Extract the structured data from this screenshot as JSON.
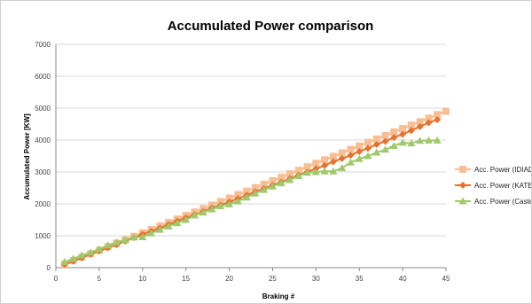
{
  "chart_data": {
    "type": "line",
    "title": "Accumulated Power comparison",
    "xlabel": "Braking #",
    "ylabel": "Accumulated Power [KW]",
    "xlim": [
      0,
      45
    ],
    "ylim": [
      0,
      7000
    ],
    "x_ticks": [
      0,
      5,
      10,
      15,
      20,
      25,
      30,
      35,
      40,
      45
    ],
    "x_tick_labels": [
      "0",
      "5",
      "10",
      "15",
      "20",
      "25",
      "30",
      "35",
      "40",
      "45"
    ],
    "y_ticks": [
      0,
      1000,
      2000,
      3000,
      4000,
      5000,
      6000,
      7000
    ],
    "y_tick_labels": [
      "0",
      "1000",
      "2000",
      "3000",
      "4000",
      "5000",
      "6000",
      "7000"
    ],
    "grid": true,
    "legend_position": "right",
    "series": [
      {
        "name": "Acc. Power (IDIADA)",
        "color": "#f9be93",
        "marker": "square",
        "x": [
          1,
          2,
          3,
          4,
          5,
          6,
          7,
          8,
          9,
          10,
          11,
          12,
          13,
          14,
          15,
          16,
          17,
          18,
          19,
          20,
          21,
          22,
          23,
          24,
          25,
          26,
          27,
          28,
          29,
          30,
          31,
          32,
          33,
          34,
          35,
          36,
          37,
          38,
          39,
          40,
          41,
          42,
          43,
          44,
          45
        ],
        "values": [
          109,
          218,
          327,
          436,
          545,
          654,
          763,
          872,
          981,
          1090,
          1199,
          1308,
          1417,
          1526,
          1635,
          1744,
          1853,
          1962,
          2071,
          2180,
          2289,
          2398,
          2507,
          2616,
          2725,
          2834,
          2943,
          3052,
          3161,
          3270,
          3379,
          3488,
          3597,
          3706,
          3815,
          3924,
          4033,
          4142,
          4251,
          4360,
          4469,
          4578,
          4687,
          4796,
          4900
        ]
      },
      {
        "name": "Acc. Power (KATECH)",
        "color": "#e3732f",
        "marker": "diamond",
        "x": [
          1,
          2,
          3,
          4,
          5,
          6,
          7,
          8,
          9,
          10,
          11,
          12,
          13,
          14,
          15,
          16,
          17,
          18,
          19,
          20,
          21,
          22,
          23,
          24,
          25,
          26,
          27,
          28,
          29,
          30,
          31,
          32,
          33,
          34,
          35,
          36,
          37,
          38,
          39,
          40,
          41,
          42,
          43,
          44
        ],
        "values": [
          100,
          200,
          310,
          420,
          520,
          620,
          720,
          830,
          940,
          1040,
          1140,
          1240,
          1350,
          1460,
          1560,
          1660,
          1760,
          1870,
          1960,
          2060,
          2160,
          2270,
          2380,
          2480,
          2580,
          2680,
          2790,
          2900,
          3000,
          3100,
          3200,
          3320,
          3420,
          3520,
          3640,
          3740,
          3860,
          3960,
          4080,
          4180,
          4300,
          4420,
          4540,
          4640
        ]
      },
      {
        "name": "Acc. Power (Castelloli)",
        "color": "#9fc96a",
        "marker": "triangle",
        "x": [
          1,
          2,
          3,
          4,
          5,
          6,
          7,
          8,
          9,
          10,
          11,
          12,
          13,
          14,
          15,
          16,
          17,
          18,
          19,
          20,
          21,
          22,
          23,
          24,
          25,
          26,
          27,
          28,
          29,
          30,
          31,
          32,
          33,
          34,
          35,
          36,
          37,
          38,
          39,
          40,
          41,
          42,
          43,
          44
        ],
        "values": [
          180,
          280,
          390,
          480,
          580,
          700,
          800,
          870,
          950,
          960,
          1080,
          1190,
          1300,
          1400,
          1500,
          1640,
          1730,
          1830,
          1930,
          1990,
          2080,
          2200,
          2330,
          2440,
          2550,
          2650,
          2750,
          2870,
          2980,
          3000,
          3020,
          3020,
          3120,
          3300,
          3410,
          3500,
          3610,
          3700,
          3820,
          3920,
          3900,
          3980,
          3990,
          3990
        ]
      }
    ]
  }
}
